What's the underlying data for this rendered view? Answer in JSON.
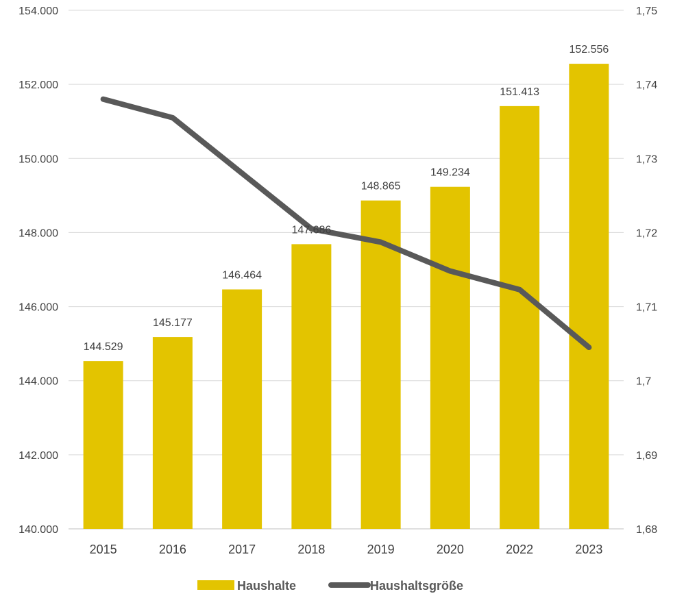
{
  "chart_data": {
    "type": "bar+line",
    "categories": [
      "2015",
      "2016",
      "2017",
      "2018",
      "2019",
      "2020",
      "2022",
      "2023"
    ],
    "series": [
      {
        "name": "Haushalte",
        "type": "bar",
        "axis": "left",
        "color": "#E3C400",
        "values": [
          144529,
          145177,
          146464,
          147686,
          148865,
          149234,
          151413,
          152556
        ],
        "labels": [
          "144.529",
          "145.177",
          "146.464",
          "147.686",
          "148.865",
          "149.234",
          "151.413",
          "152.556"
        ]
      },
      {
        "name": "Haushaltsgröße",
        "type": "line",
        "axis": "right",
        "color": "#595959",
        "values": [
          1.738,
          1.7355,
          1.728,
          1.7205,
          1.7187,
          1.7148,
          1.7123,
          1.7045
        ]
      }
    ],
    "y_left": {
      "min": 140000,
      "max": 154000,
      "ticks": [
        "140.000",
        "142.000",
        "144.000",
        "146.000",
        "148.000",
        "150.000",
        "152.000",
        "154.000"
      ]
    },
    "y_right": {
      "min": 1.68,
      "max": 1.75,
      "ticks": [
        "1,68",
        "1,69",
        "1,7",
        "1,71",
        "1,72",
        "1,73",
        "1,74",
        "1,75"
      ]
    },
    "grid": true,
    "legend": "bottom"
  }
}
